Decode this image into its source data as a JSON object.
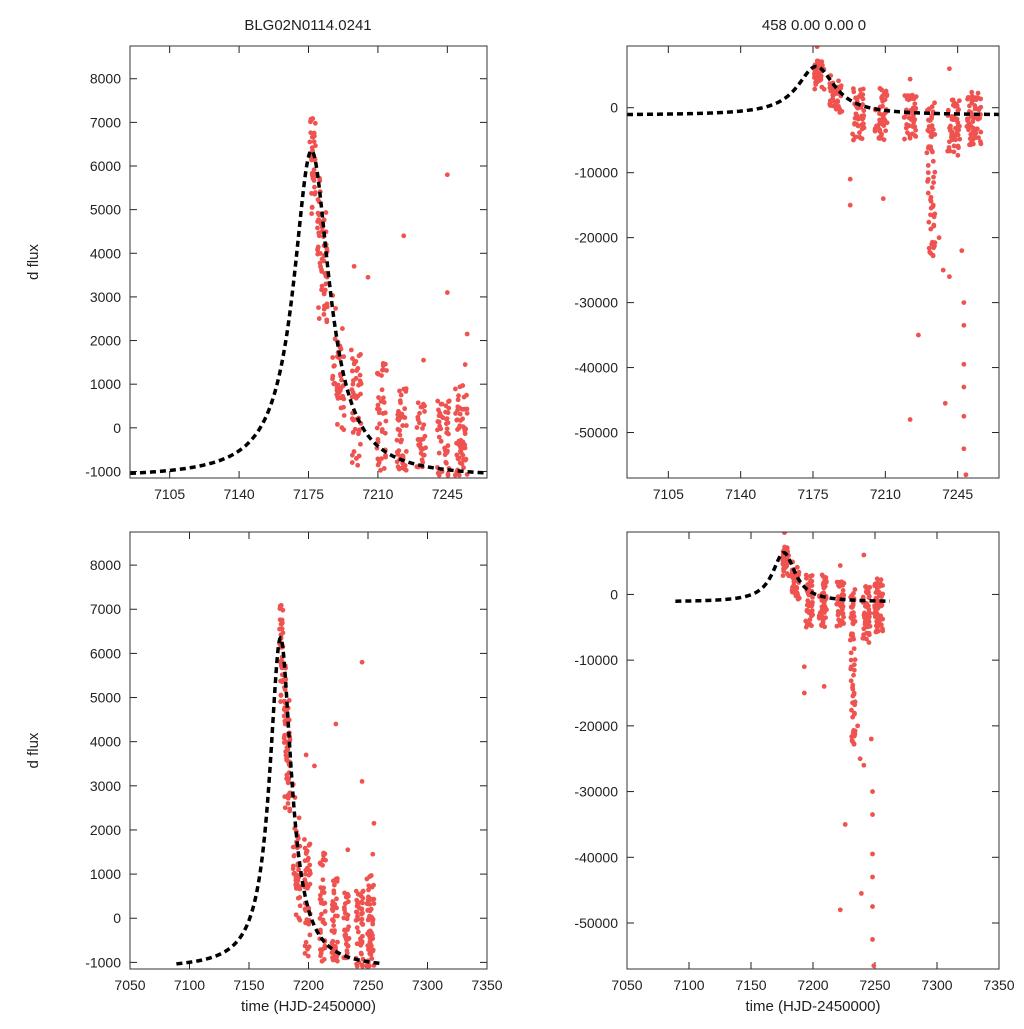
{
  "figure": {
    "title_left": "BLG02N0114.0241",
    "title_right": "458  0.00  0.00  0",
    "model_color": "#000000",
    "point_color": "#ef5350"
  },
  "chart_data": [
    {
      "id": "top-left",
      "type": "scatter",
      "xlabel": "",
      "ylabel": "d flux",
      "xlim": [
        7085,
        7265
      ],
      "ylim": [
        -1150,
        8750
      ],
      "xticks": [
        7105,
        7140,
        7175,
        7210,
        7245
      ],
      "yticks": [
        -1000,
        0,
        1000,
        2000,
        3000,
        4000,
        5000,
        6000,
        7000,
        8000
      ],
      "grid": false,
      "series": [
        {
          "name": "model",
          "kind": "dashed-line",
          "t0": 7176.5,
          "tE": 11.0,
          "peak": 6350,
          "base": -1150,
          "x_range": [
            7085,
            7265
          ]
        },
        {
          "name": "observations",
          "kind": "points",
          "seed": 7,
          "clusters": [
            {
              "x": 7177,
              "dx": 1.5,
              "n": 40,
              "y": [
                4500,
                7700
              ],
              "trend": true
            },
            {
              "x": 7182,
              "dx": 2.5,
              "n": 60,
              "y": [
                1000,
                5500
              ],
              "trend": true
            },
            {
              "x": 7190,
              "dx": 3.0,
              "n": 45,
              "y": [
                -700,
                3000
              ],
              "trend": true
            },
            {
              "x": 7199,
              "dx": 2.5,
              "n": 45,
              "y": [
                -900,
                1800
              ],
              "trend": false
            },
            {
              "x": 7212,
              "dx": 2.5,
              "n": 40,
              "y": [
                -1000,
                1500
              ],
              "trend": false
            },
            {
              "x": 7222,
              "dx": 2.5,
              "n": 45,
              "y": [
                -1000,
                900
              ],
              "trend": false
            },
            {
              "x": 7232,
              "dx": 2.5,
              "n": 35,
              "y": [
                -1000,
                600
              ],
              "trend": false
            },
            {
              "x": 7243,
              "dx": 3.0,
              "n": 45,
              "y": [
                -1100,
                700
              ],
              "trend": false
            },
            {
              "x": 7252,
              "dx": 3.0,
              "n": 60,
              "y": [
                -1100,
                1000
              ],
              "trend": false
            }
          ],
          "extra": [
            [
              7198,
              3700
            ],
            [
              7223,
              4400
            ],
            [
              7245,
              5800
            ],
            [
              7245,
              3100
            ],
            [
              7255,
              2150
            ],
            [
              7233,
              1550
            ],
            [
              7254,
              1450
            ],
            [
              7205,
              3450
            ]
          ]
        }
      ]
    },
    {
      "id": "top-right",
      "type": "scatter",
      "xlabel": "",
      "ylabel": "",
      "xlim": [
        7085,
        7265
      ],
      "ylim": [
        -57000,
        9500
      ],
      "xticks": [
        7105,
        7140,
        7175,
        7210,
        7245
      ],
      "yticks": [
        -50000,
        -40000,
        -30000,
        -20000,
        -10000,
        0
      ],
      "grid": false,
      "series": [
        {
          "name": "model",
          "kind": "dashed-line",
          "t0": 7176.5,
          "tE": 11.0,
          "peak": 6350,
          "base": -1150,
          "x_range": [
            7085,
            7265
          ]
        },
        {
          "name": "observations",
          "kind": "points",
          "seed": 11,
          "clusters": [
            {
              "x": 7178,
              "dx": 2.5,
              "n": 45,
              "y": [
                1000,
                8000
              ],
              "trend": true
            },
            {
              "x": 7186,
              "dx": 3.0,
              "n": 45,
              "y": [
                -4000,
                5000
              ],
              "trend": true
            },
            {
              "x": 7197,
              "dx": 3.0,
              "n": 45,
              "y": [
                -5000,
                3000
              ],
              "trend": false
            },
            {
              "x": 7208,
              "dx": 3.0,
              "n": 45,
              "y": [
                -5000,
                3000
              ],
              "trend": false
            },
            {
              "x": 7222,
              "dx": 3.0,
              "n": 45,
              "y": [
                -5000,
                2000
              ],
              "trend": false
            },
            {
              "x": 7232,
              "dx": 2.0,
              "n": 60,
              "y": [
                -24000,
                1000
              ],
              "trend": false
            },
            {
              "x": 7243,
              "dx": 3.0,
              "n": 50,
              "y": [
                -8000,
                2000
              ],
              "trend": false
            },
            {
              "x": 7253,
              "dx": 3.5,
              "n": 70,
              "y": [
                -6000,
                2500
              ],
              "trend": false
            }
          ],
          "extra": [
            [
              7177,
              9400
            ],
            [
              7193,
              -15000
            ],
            [
              7193,
              -11000
            ],
            [
              7209,
              -14000
            ],
            [
              7222,
              -48000
            ],
            [
              7226,
              -35000
            ],
            [
              7239,
              -45500
            ],
            [
              7241,
              -26000
            ],
            [
              7236,
              -20000
            ],
            [
              7248,
              -30000
            ],
            [
              7248,
              -33500
            ],
            [
              7248,
              -39500
            ],
            [
              7248,
              -43000
            ],
            [
              7248,
              -47500
            ],
            [
              7248,
              -52500
            ],
            [
              7249,
              -56500
            ],
            [
              7247,
              -22000
            ],
            [
              7241,
              6000
            ],
            [
              7222,
              4400
            ],
            [
              7238,
              -25000
            ]
          ]
        }
      ]
    },
    {
      "id": "bottom-left",
      "type": "scatter",
      "xlabel": "time (HJD-2450000)",
      "ylabel": "d flux",
      "xlim": [
        7050,
        7350
      ],
      "ylim": [
        -1150,
        8750
      ],
      "xticks": [
        7050,
        7100,
        7150,
        7200,
        7250,
        7300,
        7350
      ],
      "yticks": [
        -1000,
        0,
        1000,
        2000,
        3000,
        4000,
        5000,
        6000,
        7000,
        8000
      ],
      "grid": false,
      "series": [
        {
          "name": "model",
          "kind": "dashed-line",
          "t0": 7176.5,
          "tE": 11.0,
          "peak": 6350,
          "base": -1150,
          "x_range": [
            7089,
            7262
          ]
        },
        {
          "name": "observations",
          "kind": "points",
          "seed": 7,
          "clusters": [
            {
              "x": 7177,
              "dx": 1.5,
              "n": 40,
              "y": [
                4500,
                7700
              ],
              "trend": true
            },
            {
              "x": 7182,
              "dx": 2.5,
              "n": 60,
              "y": [
                1000,
                5500
              ],
              "trend": true
            },
            {
              "x": 7190,
              "dx": 3.0,
              "n": 45,
              "y": [
                -700,
                3000
              ],
              "trend": true
            },
            {
              "x": 7199,
              "dx": 2.5,
              "n": 45,
              "y": [
                -900,
                1800
              ],
              "trend": false
            },
            {
              "x": 7212,
              "dx": 2.5,
              "n": 40,
              "y": [
                -1000,
                1500
              ],
              "trend": false
            },
            {
              "x": 7222,
              "dx": 2.5,
              "n": 45,
              "y": [
                -1000,
                900
              ],
              "trend": false
            },
            {
              "x": 7232,
              "dx": 2.5,
              "n": 35,
              "y": [
                -1000,
                600
              ],
              "trend": false
            },
            {
              "x": 7243,
              "dx": 3.0,
              "n": 45,
              "y": [
                -1100,
                700
              ],
              "trend": false
            },
            {
              "x": 7252,
              "dx": 3.0,
              "n": 60,
              "y": [
                -1100,
                1000
              ],
              "trend": false
            }
          ],
          "extra": [
            [
              7198,
              3700
            ],
            [
              7223,
              4400
            ],
            [
              7245,
              5800
            ],
            [
              7245,
              3100
            ],
            [
              7255,
              2150
            ],
            [
              7233,
              1550
            ],
            [
              7254,
              1450
            ],
            [
              7205,
              3450
            ]
          ]
        }
      ]
    },
    {
      "id": "bottom-right",
      "type": "scatter",
      "xlabel": "time (HJD-2450000)",
      "ylabel": "",
      "xlim": [
        7050,
        7350
      ],
      "ylim": [
        -57000,
        9500
      ],
      "xticks": [
        7050,
        7100,
        7150,
        7200,
        7250,
        7300,
        7350
      ],
      "yticks": [
        -50000,
        -40000,
        -30000,
        -20000,
        -10000,
        0
      ],
      "grid": false,
      "series": [
        {
          "name": "model",
          "kind": "dashed-line",
          "t0": 7176.5,
          "tE": 11.0,
          "peak": 6350,
          "base": -1150,
          "x_range": [
            7089,
            7262
          ]
        },
        {
          "name": "observations",
          "kind": "points",
          "seed": 11,
          "clusters": [
            {
              "x": 7178,
              "dx": 2.5,
              "n": 45,
              "y": [
                1000,
                8000
              ],
              "trend": true
            },
            {
              "x": 7186,
              "dx": 3.0,
              "n": 45,
              "y": [
                -4000,
                5000
              ],
              "trend": true
            },
            {
              "x": 7197,
              "dx": 3.0,
              "n": 45,
              "y": [
                -5000,
                3000
              ],
              "trend": false
            },
            {
              "x": 7208,
              "dx": 3.0,
              "n": 45,
              "y": [
                -5000,
                3000
              ],
              "trend": false
            },
            {
              "x": 7222,
              "dx": 3.0,
              "n": 45,
              "y": [
                -5000,
                2000
              ],
              "trend": false
            },
            {
              "x": 7232,
              "dx": 2.0,
              "n": 60,
              "y": [
                -24000,
                1000
              ],
              "trend": false
            },
            {
              "x": 7243,
              "dx": 3.0,
              "n": 50,
              "y": [
                -8000,
                2000
              ],
              "trend": false
            },
            {
              "x": 7253,
              "dx": 3.5,
              "n": 70,
              "y": [
                -6000,
                2500
              ],
              "trend": false
            }
          ],
          "extra": [
            [
              7177,
              9400
            ],
            [
              7193,
              -15000
            ],
            [
              7193,
              -11000
            ],
            [
              7209,
              -14000
            ],
            [
              7222,
              -48000
            ],
            [
              7226,
              -35000
            ],
            [
              7239,
              -45500
            ],
            [
              7241,
              -26000
            ],
            [
              7236,
              -20000
            ],
            [
              7248,
              -30000
            ],
            [
              7248,
              -33500
            ],
            [
              7248,
              -39500
            ],
            [
              7248,
              -43000
            ],
            [
              7248,
              -47500
            ],
            [
              7248,
              -52500
            ],
            [
              7249,
              -56500
            ],
            [
              7247,
              -22000
            ],
            [
              7241,
              6000
            ],
            [
              7222,
              4400
            ],
            [
              7238,
              -25000
            ]
          ]
        }
      ]
    }
  ]
}
